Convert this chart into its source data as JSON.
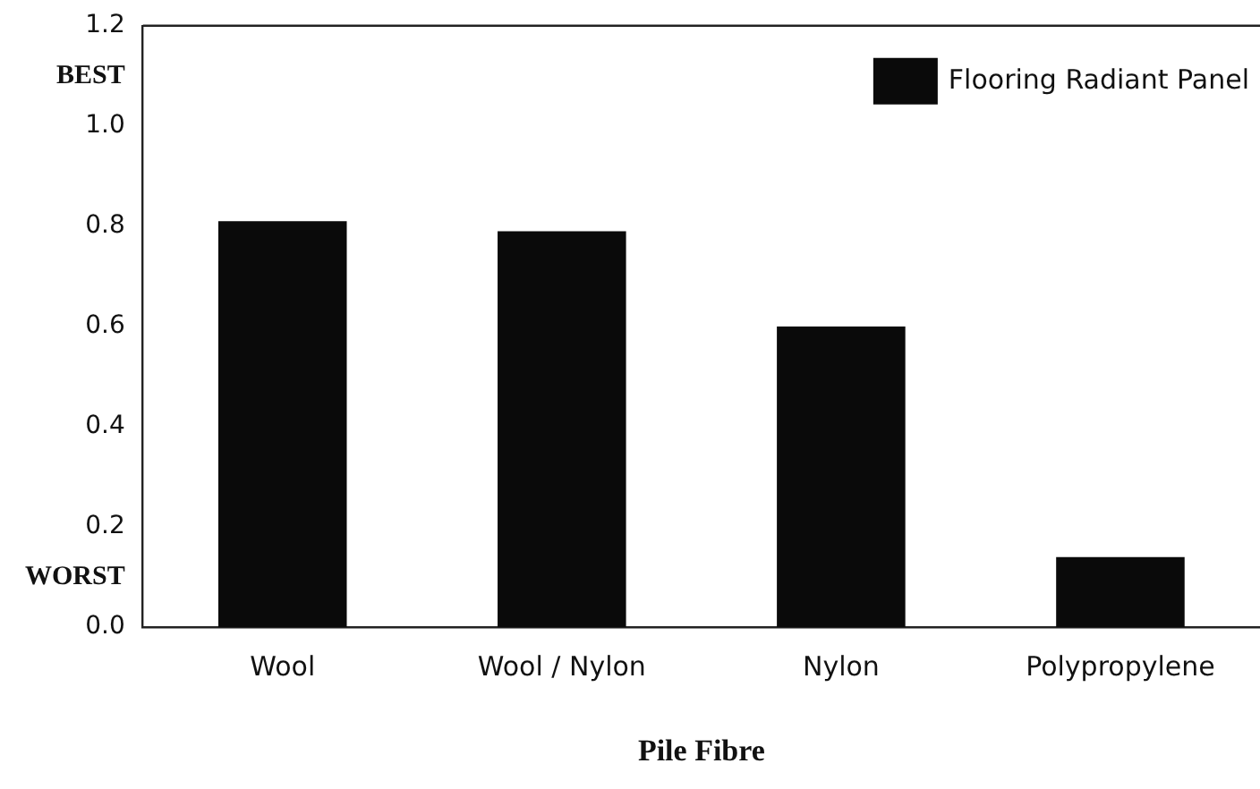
{
  "chart_data": {
    "type": "bar",
    "xlabel": "Pile Fibre",
    "categories": [
      "Wool",
      "Wool / Nylon",
      "Nylon",
      "Polypropylene"
    ],
    "series": [
      {
        "name": "Flooring Radiant Panel",
        "color": "#0a0a0a",
        "values": [
          0.81,
          0.79,
          0.6,
          0.14
        ]
      }
    ],
    "ylim": [
      0,
      1.2
    ],
    "yticks": [
      {
        "value": 0,
        "label": "0.0"
      },
      {
        "value": 0.1,
        "label": "WORST"
      },
      {
        "value": 0.2,
        "label": "0.2"
      },
      {
        "value": 0.4,
        "label": "0.4"
      },
      {
        "value": 0.6,
        "label": "0.6"
      },
      {
        "value": 0.8,
        "label": "0.8"
      },
      {
        "value": 1,
        "label": "1.0"
      },
      {
        "value": 1.1,
        "label": "BEST"
      },
      {
        "value": 1.2,
        "label": "1.2"
      }
    ],
    "grid": false,
    "legend": "top right"
  }
}
